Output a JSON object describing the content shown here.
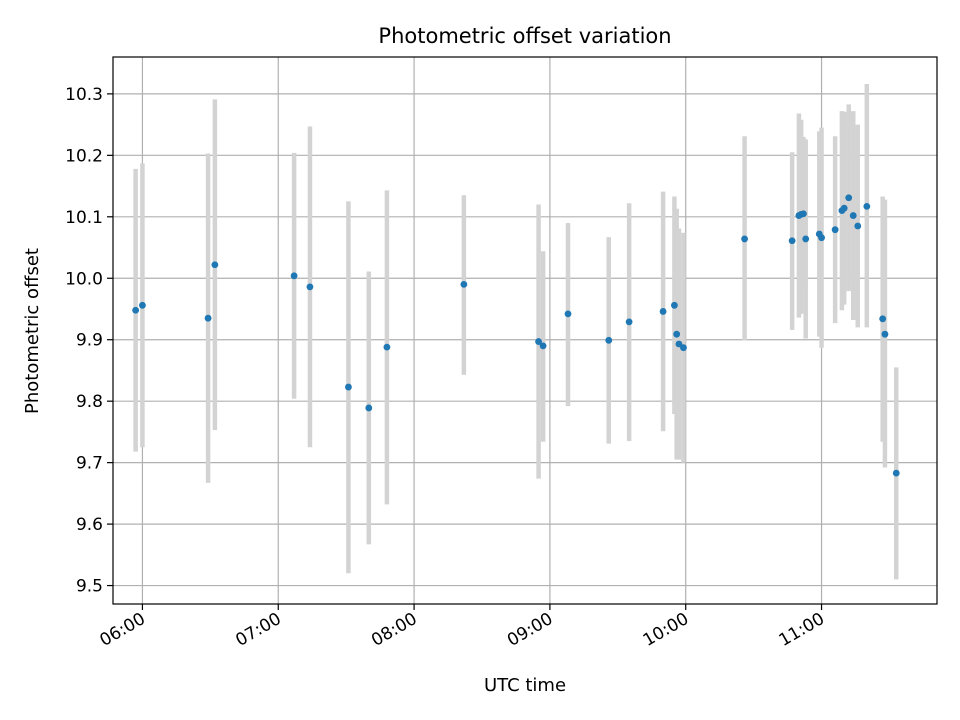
{
  "chart_data": {
    "type": "scatter",
    "title": "Photometric offset variation",
    "xlabel": "UTC time",
    "ylabel": "Photometric offset",
    "x_ticks": [
      "06:00",
      "07:00",
      "08:00",
      "09:00",
      "10:00",
      "11:00"
    ],
    "x_range": [
      "05:47",
      "11:51"
    ],
    "y_ticks": [
      9.5,
      9.6,
      9.7,
      9.8,
      9.9,
      10.0,
      10.1,
      10.2,
      10.3
    ],
    "y_range": [
      9.47,
      10.36
    ],
    "grid": true,
    "colors": {
      "point": "#1f77b4",
      "errorbar": "#d3d3d3"
    },
    "points": [
      {
        "x": "05:57",
        "y": 9.948,
        "lo": 9.718,
        "hi": 10.178
      },
      {
        "x": "06:00",
        "y": 9.956,
        "lo": 9.725,
        "hi": 10.187
      },
      {
        "x": "06:29",
        "y": 9.935,
        "lo": 9.667,
        "hi": 10.203
      },
      {
        "x": "06:32",
        "y": 10.022,
        "lo": 9.753,
        "hi": 10.291
      },
      {
        "x": "07:07",
        "y": 10.004,
        "lo": 9.804,
        "hi": 10.204
      },
      {
        "x": "07:14",
        "y": 9.986,
        "lo": 9.725,
        "hi": 10.247
      },
      {
        "x": "07:31",
        "y": 9.823,
        "lo": 9.52,
        "hi": 10.125
      },
      {
        "x": "07:40",
        "y": 9.789,
        "lo": 9.567,
        "hi": 10.011
      },
      {
        "x": "07:48",
        "y": 9.888,
        "lo": 9.632,
        "hi": 10.143
      },
      {
        "x": "08:22",
        "y": 9.99,
        "lo": 9.843,
        "hi": 10.135
      },
      {
        "x": "08:55",
        "y": 9.897,
        "lo": 9.674,
        "hi": 10.12
      },
      {
        "x": "08:57",
        "y": 9.89,
        "lo": 9.734,
        "hi": 10.044
      },
      {
        "x": "09:08",
        "y": 9.942,
        "lo": 9.792,
        "hi": 10.09
      },
      {
        "x": "09:26",
        "y": 9.899,
        "lo": 9.731,
        "hi": 10.067
      },
      {
        "x": "09:35",
        "y": 9.929,
        "lo": 9.735,
        "hi": 10.122
      },
      {
        "x": "09:50",
        "y": 9.946,
        "lo": 9.751,
        "hi": 10.141
      },
      {
        "x": "09:55",
        "y": 9.956,
        "lo": 9.779,
        "hi": 10.133
      },
      {
        "x": "09:56",
        "y": 9.909,
        "lo": 9.705,
        "hi": 10.113
      },
      {
        "x": "09:57",
        "y": 9.893,
        "lo": 9.705,
        "hi": 10.081
      },
      {
        "x": "09:59",
        "y": 9.887,
        "lo": 9.7,
        "hi": 10.074
      },
      {
        "x": "10:26",
        "y": 10.064,
        "lo": 9.899,
        "hi": 10.231
      },
      {
        "x": "10:47",
        "y": 10.061,
        "lo": 9.916,
        "hi": 10.205
      },
      {
        "x": "10:50",
        "y": 10.102,
        "lo": 9.936,
        "hi": 10.268
      },
      {
        "x": "10:51",
        "y": 10.104,
        "lo": 9.942,
        "hi": 10.258
      },
      {
        "x": "10:52",
        "y": 10.105,
        "lo": 9.98,
        "hi": 10.23
      },
      {
        "x": "10:53",
        "y": 10.064,
        "lo": 9.902,
        "hi": 10.226
      },
      {
        "x": "10:59",
        "y": 10.072,
        "lo": 9.905,
        "hi": 10.239
      },
      {
        "x": "11:00",
        "y": 10.066,
        "lo": 9.887,
        "hi": 10.245
      },
      {
        "x": "11:06",
        "y": 10.079,
        "lo": 9.927,
        "hi": 10.231
      },
      {
        "x": "11:09",
        "y": 10.11,
        "lo": 9.948,
        "hi": 10.272
      },
      {
        "x": "11:10",
        "y": 10.114,
        "lo": 9.957,
        "hi": 10.271
      },
      {
        "x": "11:12",
        "y": 10.131,
        "lo": 9.979,
        "hi": 10.283
      },
      {
        "x": "11:14",
        "y": 10.102,
        "lo": 9.932,
        "hi": 10.272
      },
      {
        "x": "11:16",
        "y": 10.085,
        "lo": 9.92,
        "hi": 10.25
      },
      {
        "x": "11:20",
        "y": 10.117,
        "lo": 9.92,
        "hi": 10.316
      },
      {
        "x": "11:27",
        "y": 9.934,
        "lo": 9.734,
        "hi": 10.133
      },
      {
        "x": "11:28",
        "y": 9.909,
        "lo": 9.692,
        "hi": 10.128
      },
      {
        "x": "11:33",
        "y": 9.683,
        "lo": 9.51,
        "hi": 9.855
      }
    ]
  }
}
